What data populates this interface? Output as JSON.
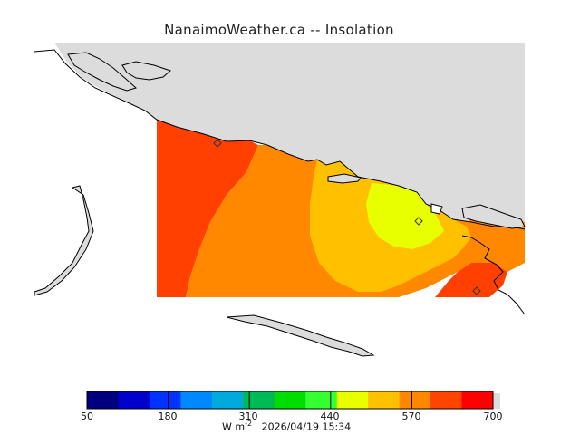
{
  "title": "NanaimoWeather.ca -- Insolation",
  "map": {
    "land_color": "#dcdcdc",
    "water_color": "#ffffff",
    "coast_color": "#000000",
    "field_levels": [
      "#ff4000",
      "#ff8800",
      "#ffc000",
      "#e8ff00",
      "#ffc000",
      "#ff8800",
      "#ff4000"
    ],
    "station_marker": "diamond"
  },
  "colorbar": {
    "colors": [
      "#00007f",
      "#0000cc",
      "#0033ff",
      "#0088ff",
      "#00aadd",
      "#00bb55",
      "#00dd00",
      "#33ff33",
      "#e8ff00",
      "#ffc000",
      "#ff8800",
      "#ff4400",
      "#ff0000"
    ],
    "tick_labels": [
      "50",
      "180",
      "310",
      "440",
      "570",
      "700"
    ],
    "tick_values": [
      50,
      180,
      310,
      440,
      570,
      700
    ],
    "range": [
      50,
      700
    ]
  },
  "units": "W m",
  "units_exp": "-2",
  "timestamp": "2026/04/19 15:34"
}
